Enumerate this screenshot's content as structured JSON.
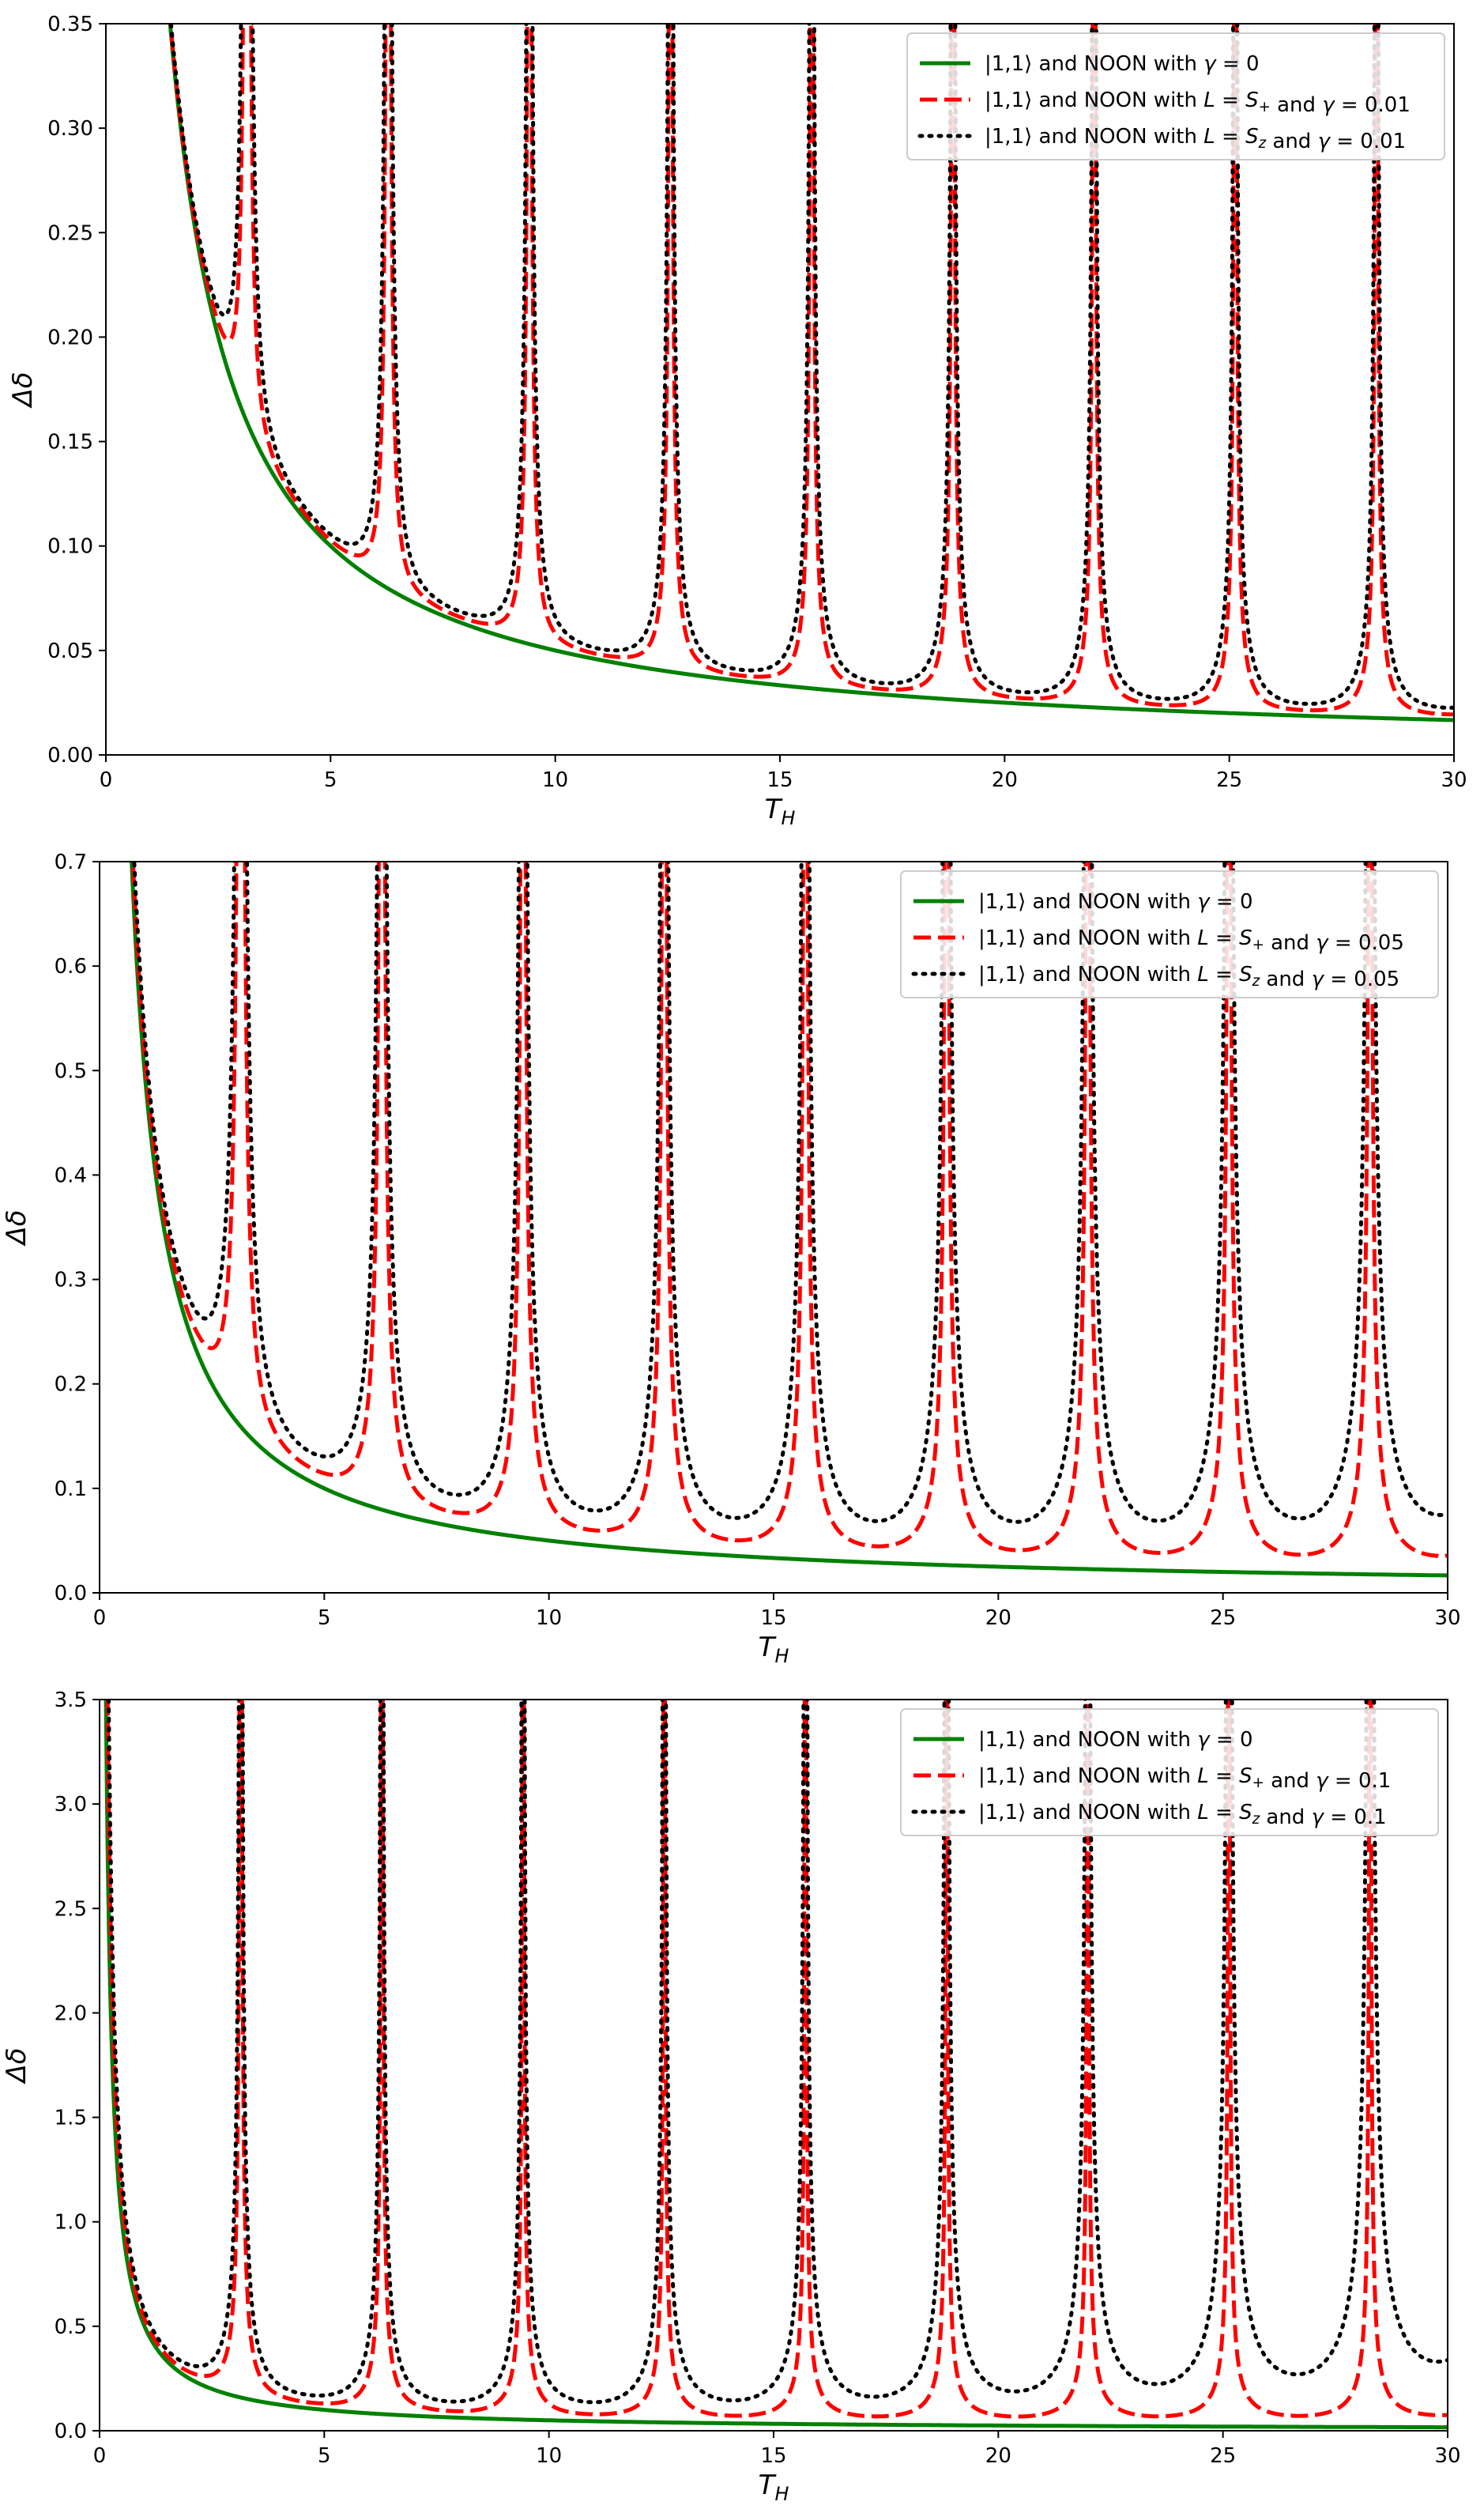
{
  "chart_data": [
    {
      "type": "line",
      "xlabel": "T_H",
      "ylabel": "Δδ",
      "xlim": [
        0,
        30
      ],
      "ylim": [
        0,
        0.35
      ],
      "xticks": [
        "0",
        "5",
        "10",
        "15",
        "20",
        "25",
        "30"
      ],
      "yticks": [
        "0.00",
        "0.05",
        "0.10",
        "0.15",
        "0.20",
        "0.25",
        "0.30",
        "0.35"
      ],
      "legend_position": "top-right",
      "gamma": 0.01,
      "series": [
        {
          "name": "|1,1⟩ and NOON with γ = 0",
          "color": "#008000",
          "style": "solid"
        },
        {
          "name": "|1,1⟩ and NOON with L = S₊ and γ = 0.01",
          "color": "#ff0000",
          "style": "dashed"
        },
        {
          "name": "|1,1⟩ and NOON with L = S_z and γ = 0.01",
          "color": "#000000",
          "style": "dotted"
        }
      ]
    },
    {
      "type": "line",
      "xlabel": "T_H",
      "ylabel": "Δδ",
      "xlim": [
        0,
        30
      ],
      "ylim": [
        0,
        0.7
      ],
      "xticks": [
        "0",
        "5",
        "10",
        "15",
        "20",
        "25",
        "30"
      ],
      "yticks": [
        "0.0",
        "0.1",
        "0.2",
        "0.3",
        "0.4",
        "0.5",
        "0.6",
        "0.7"
      ],
      "legend_position": "top-right",
      "gamma": 0.05,
      "series": [
        {
          "name": "|1,1⟩ and NOON with γ = 0",
          "color": "#008000",
          "style": "solid"
        },
        {
          "name": "|1,1⟩ and NOON with L = S₊ and γ = 0.05",
          "color": "#ff0000",
          "style": "dashed"
        },
        {
          "name": "|1,1⟩ and NOON with L = S_z and γ = 0.05",
          "color": "#000000",
          "style": "dotted"
        }
      ]
    },
    {
      "type": "line",
      "xlabel": "T_H",
      "ylabel": "Δδ",
      "xlim": [
        0,
        30
      ],
      "ylim": [
        0,
        3.5
      ],
      "xticks": [
        "0",
        "5",
        "10",
        "15",
        "20",
        "25",
        "30"
      ],
      "yticks": [
        "0.0",
        "0.5",
        "1.0",
        "1.5",
        "2.0",
        "2.5",
        "3.0",
        "3.5"
      ],
      "legend_position": "top-right",
      "gamma": 0.1,
      "series": [
        {
          "name": "|1,1⟩ and NOON with γ = 0",
          "color": "#008000",
          "style": "solid"
        },
        {
          "name": "|1,1⟩ and NOON with L = S₊ and γ = 0.1",
          "color": "#ff0000",
          "style": "dashed"
        },
        {
          "name": "|1,1⟩ and NOON with L = S_z and γ = 0.1",
          "color": "#000000",
          "style": "dotted"
        }
      ]
    }
  ]
}
